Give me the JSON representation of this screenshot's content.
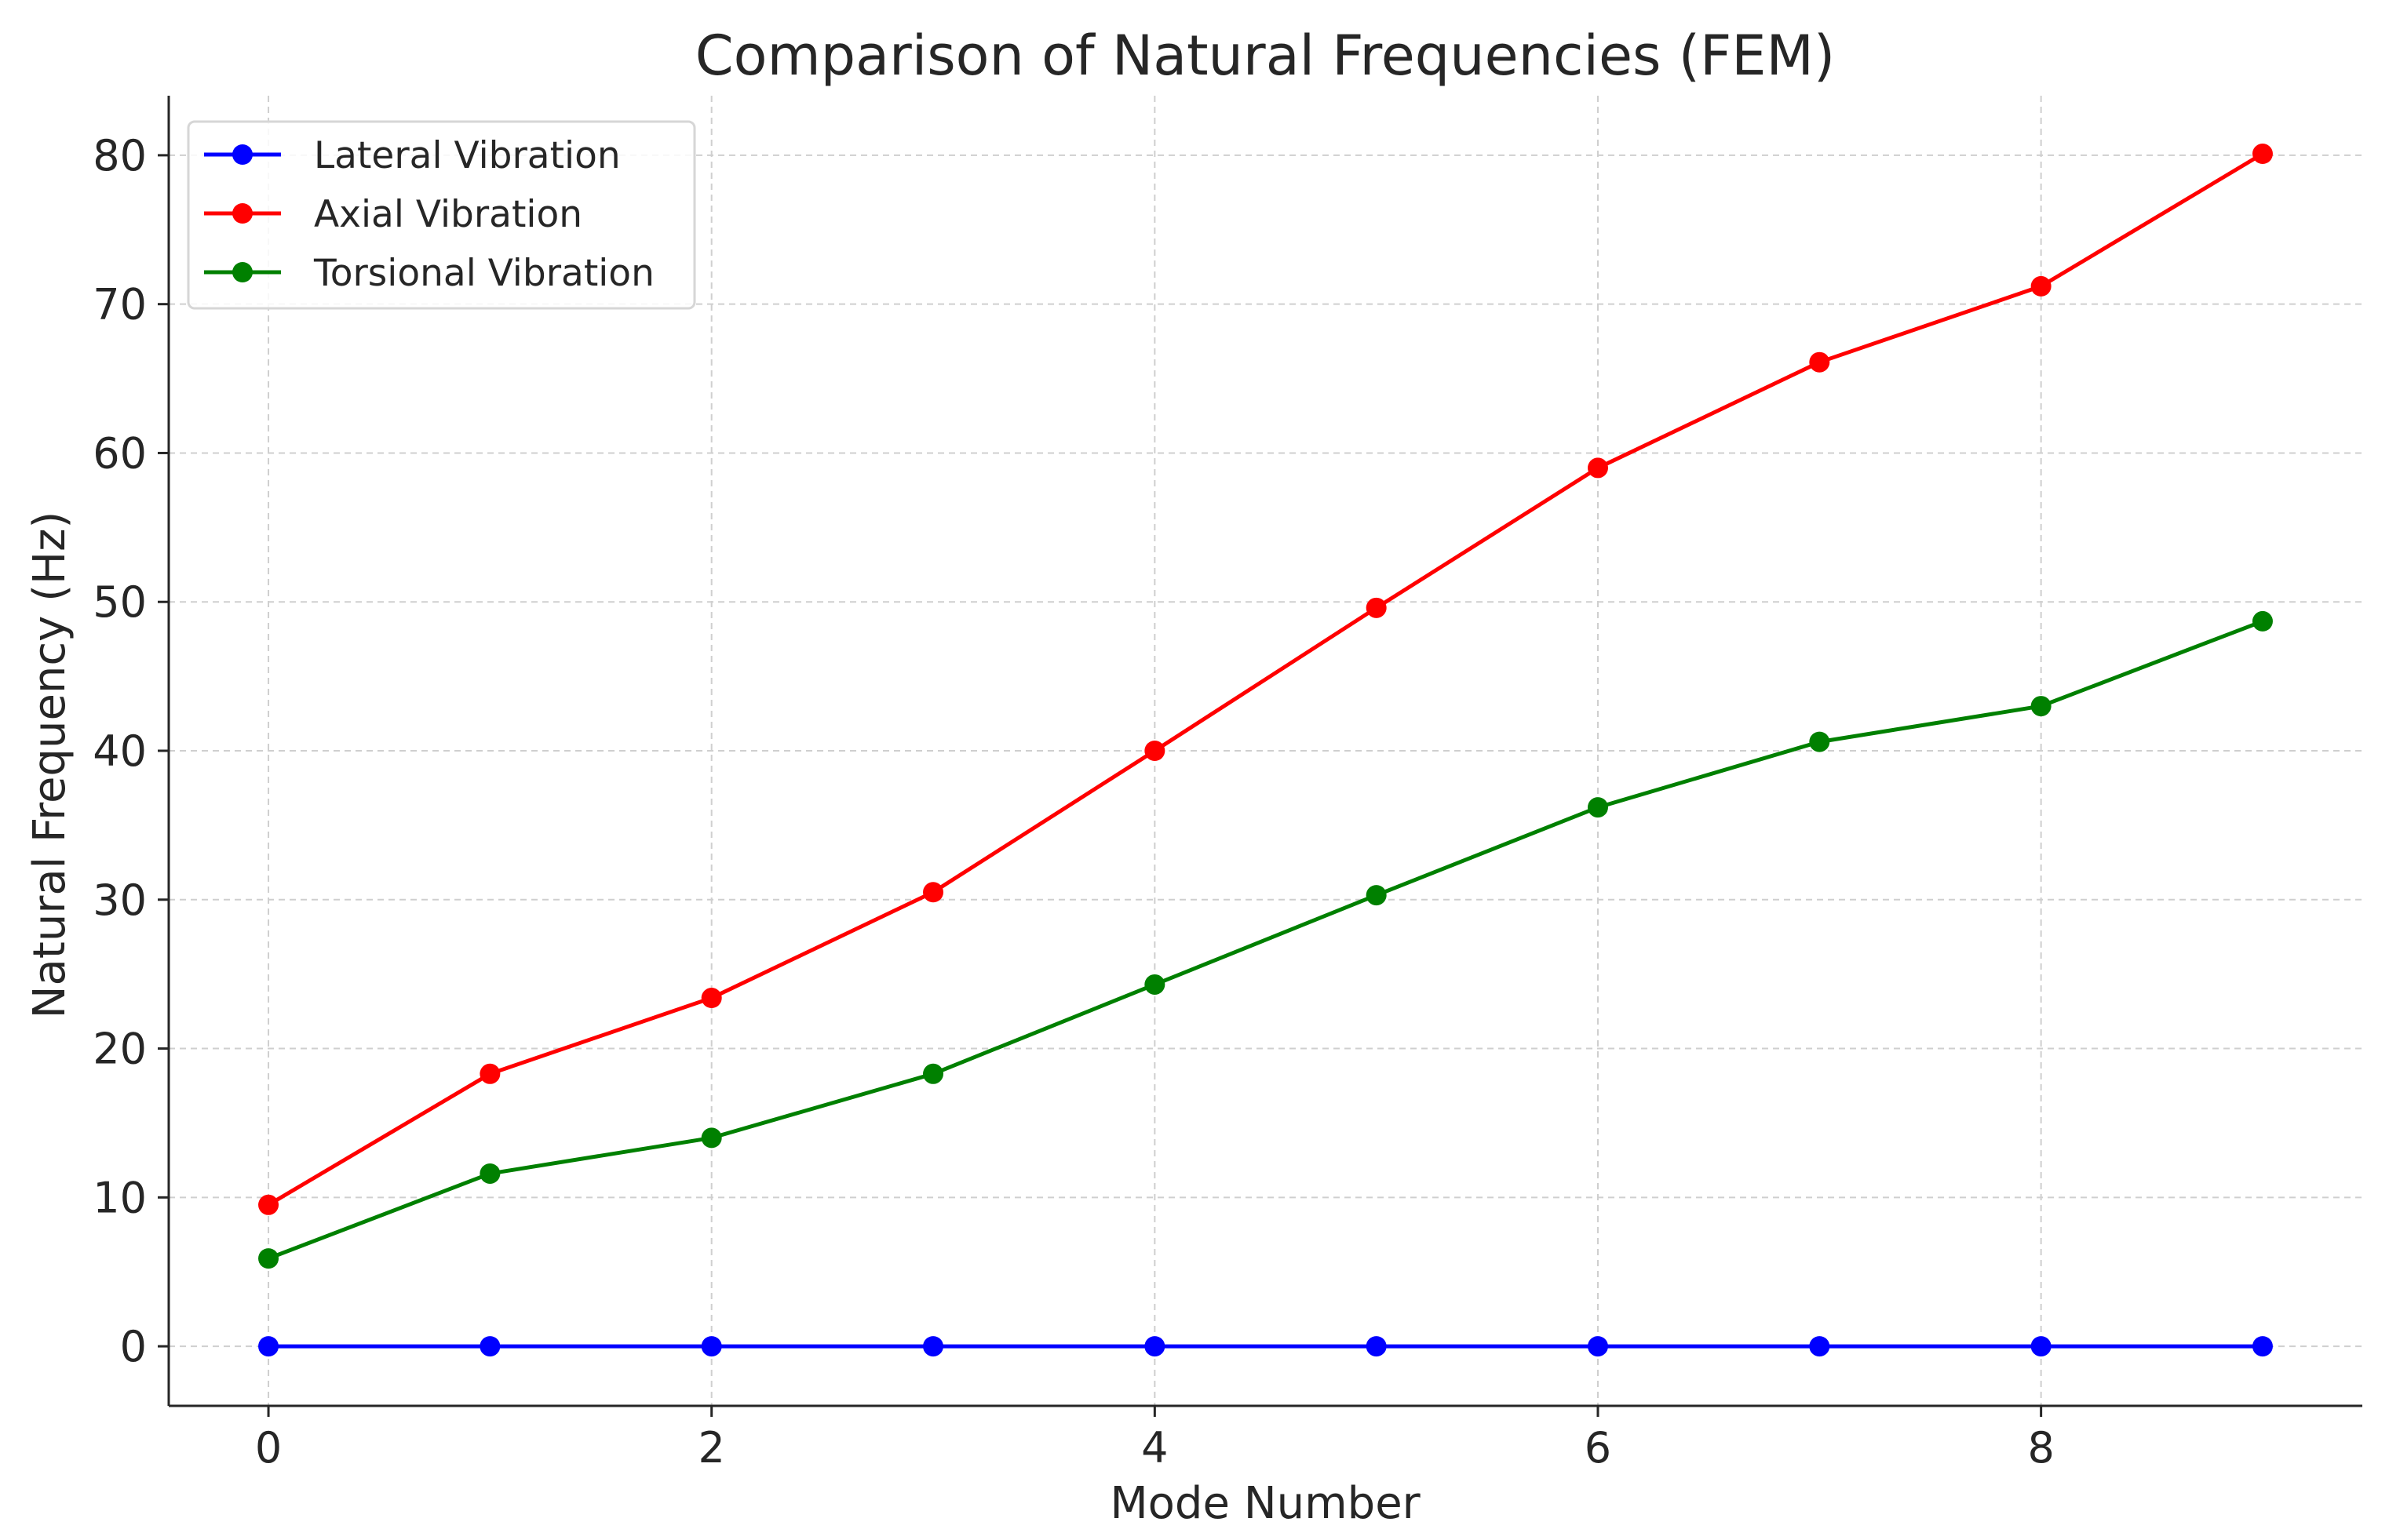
{
  "chart_data": {
    "type": "line",
    "title": "Comparison of Natural Frequencies (FEM)",
    "xlabel": "Mode Number",
    "ylabel": "Natural Frequency (Hz)",
    "xlim": [
      -0.45,
      9.45
    ],
    "ylim": [
      -4,
      84
    ],
    "xticks": [
      0,
      2,
      4,
      6,
      8
    ],
    "yticks": [
      0,
      10,
      20,
      30,
      40,
      50,
      60,
      70,
      80
    ],
    "grid": true,
    "legend_position": "top-left",
    "x": [
      0,
      1,
      2,
      3,
      4,
      5,
      6,
      7,
      8,
      9
    ],
    "series": [
      {
        "name": "Lateral Vibration",
        "color": "#0000ff",
        "values": [
          0,
          0,
          0,
          0,
          0,
          0,
          0,
          0,
          0,
          0
        ]
      },
      {
        "name": "Axial Vibration",
        "color": "#ff0000",
        "values": [
          9.5,
          18.3,
          23.4,
          30.5,
          40.0,
          49.6,
          59.0,
          66.1,
          71.2,
          80.1
        ]
      },
      {
        "name": "Torsional Vibration",
        "color": "#008000",
        "values": [
          5.9,
          11.6,
          14.0,
          18.3,
          24.3,
          30.3,
          36.2,
          40.6,
          43.0,
          48.7
        ]
      }
    ]
  }
}
